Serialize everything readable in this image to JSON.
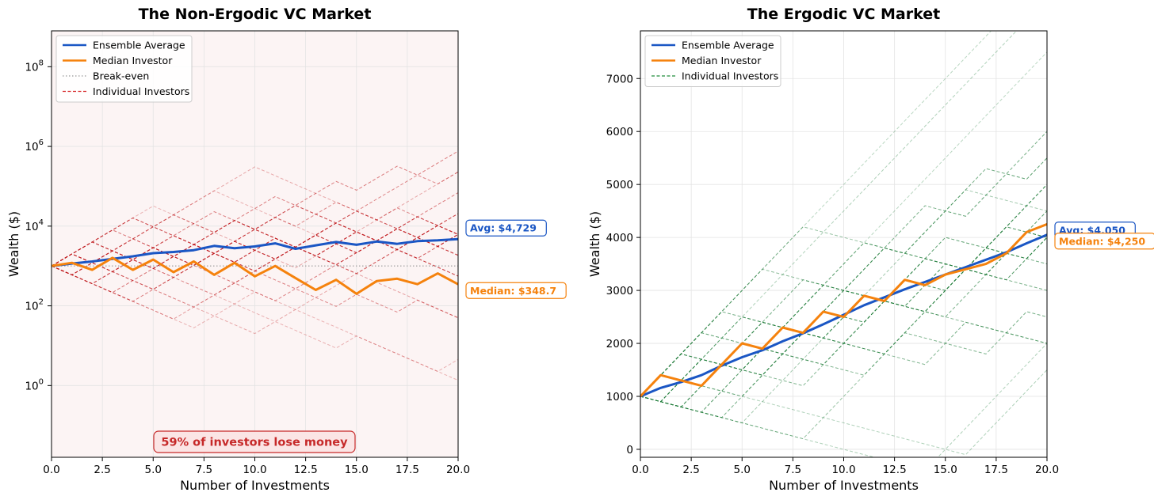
{
  "chart_data": [
    {
      "type": "line",
      "title": "The Non-Ergodic VC Market",
      "xlabel": "Number of Investments",
      "ylabel": "Wealth ($)",
      "yscale": "log",
      "xlim": [
        0,
        20
      ],
      "ylim_log10": [
        -1.8,
        8.9
      ],
      "xticks": [
        "0.0",
        "2.5",
        "5.0",
        "7.5",
        "10.0",
        "12.5",
        "15.0",
        "17.5",
        "20.0"
      ],
      "yticks": [
        {
          "base": "10",
          "exp": "0",
          "value": 1
        },
        {
          "base": "10",
          "exp": "2",
          "value": 100
        },
        {
          "base": "10",
          "exp": "4",
          "value": 10000
        },
        {
          "base": "10",
          "exp": "6",
          "value": 1000000
        },
        {
          "base": "10",
          "exp": "8",
          "value": 100000000
        }
      ],
      "grid": true,
      "legend_position": "top-left",
      "background": "#fcf4f4",
      "legend": [
        {
          "label": "Ensemble Average",
          "color": "#1a56c4",
          "style": "solid"
        },
        {
          "label": "Median Investor",
          "color": "#f5820d",
          "style": "solid"
        },
        {
          "label": "Break-even",
          "color": "#a9a9a9",
          "style": "dotted"
        },
        {
          "label": "Individual Investors",
          "color": "#d62728",
          "style": "dashed"
        }
      ],
      "individual_color": "#c0171b",
      "individual_multipliers": [
        2,
        0.6
      ],
      "individual_paths": [
        {
          "ups": "11111011000001000000",
          "opacity": 0.3
        },
        {
          "ups": "11010101100000000000",
          "opacity": 0.4
        },
        {
          "ups": "10111100000011111111",
          "opacity": 0.35
        },
        {
          "ups": "11110000111100001111",
          "opacity": 0.55
        },
        {
          "ups": "00000011111111000000",
          "opacity": 0.4
        },
        {
          "ups": "01010101010101010101",
          "opacity": 0.75
        },
        {
          "ups": "10101010101010101010",
          "opacity": 0.75
        },
        {
          "ups": "00110011001100110011",
          "opacity": 0.7
        },
        {
          "ups": "11001100110011001100",
          "opacity": 0.7
        },
        {
          "ups": "11100011100011100011",
          "opacity": 0.6
        },
        {
          "ups": "00011100011100011100",
          "opacity": 0.6
        },
        {
          "ups": "10011001100110011001",
          "opacity": 0.7
        },
        {
          "ups": "01100110011001100110",
          "opacity": 0.7
        },
        {
          "ups": "11011011011011011011",
          "opacity": 0.55
        },
        {
          "ups": "00100100100100100100",
          "opacity": 0.5
        },
        {
          "ups": "10000001000000100000",
          "opacity": 0.3
        },
        {
          "ups": "00001111000011110000",
          "opacity": 0.55
        },
        {
          "ups": "11110100101100101001",
          "opacity": 0.5
        },
        {
          "ups": "01101011101011011101",
          "opacity": 0.5
        },
        {
          "ups": "00000001110000000001",
          "opacity": 0.3
        },
        {
          "ups": "01111111110000000000",
          "opacity": 0.35
        },
        {
          "ups": "10000000001111111100",
          "opacity": 0.35
        }
      ],
      "series": [
        {
          "name": "Break-even",
          "x": [
            0,
            20
          ],
          "y": [
            1000,
            1000
          ]
        },
        {
          "name": "Ensemble Average",
          "x": [
            0,
            1,
            2,
            3,
            4,
            5,
            6,
            7,
            8,
            9,
            10,
            11,
            12,
            13,
            14,
            15,
            16,
            17,
            18,
            19,
            20
          ],
          "y": [
            1000,
            1150,
            1300,
            1500,
            1750,
            2100,
            2250,
            2500,
            3200,
            2800,
            3100,
            3700,
            2700,
            3300,
            4000,
            3400,
            4100,
            3600,
            4200,
            4400,
            4729
          ]
        },
        {
          "name": "Median Investor",
          "x": [
            0,
            1,
            2,
            3,
            4,
            5,
            6,
            7,
            8,
            9,
            10,
            11,
            12,
            13,
            14,
            15,
            16,
            17,
            18,
            19,
            20
          ],
          "y": [
            1000,
            1200,
            800,
            1600,
            800,
            1450,
            700,
            1300,
            600,
            1200,
            550,
            1000,
            500,
            250,
            450,
            200,
            420,
            480,
            350,
            650,
            348.7
          ]
        }
      ],
      "callouts": [
        {
          "text": "Avg: $4,729",
          "y": 4729,
          "color": "#1a56c4"
        },
        {
          "text": "Median: $348.7",
          "y": 348.7,
          "color": "#f5820d"
        }
      ],
      "annotation": "59% of investors lose money"
    },
    {
      "type": "line",
      "title": "The Ergodic VC Market",
      "xlabel": "Number of Investments",
      "ylabel": "Wealth ($)",
      "yscale": "linear",
      "xlim": [
        0,
        20
      ],
      "ylim": [
        -150,
        7900
      ],
      "xticks": [
        "0.0",
        "2.5",
        "5.0",
        "7.5",
        "10.0",
        "12.5",
        "15.0",
        "17.5",
        "20.0"
      ],
      "yticks": [
        0,
        1000,
        2000,
        3000,
        4000,
        5000,
        6000,
        7000
      ],
      "grid": true,
      "legend_position": "top-left",
      "background": "#ffffff",
      "legend": [
        {
          "label": "Ensemble Average",
          "color": "#1a56c4",
          "style": "solid"
        },
        {
          "label": "Median Investor",
          "color": "#f5820d",
          "style": "solid"
        },
        {
          "label": "Individual Investors",
          "color": "#1e8c3a",
          "style": "dashed"
        }
      ],
      "individual_color": "#1b7a36",
      "individual_steps": [
        400,
        -100
      ],
      "individual_paths": [
        {
          "ups": "00011111111111111111",
          "opacity": 0.3
        },
        {
          "ups": "00000000000000111111",
          "opacity": 0.35
        },
        {
          "ups": "11111100000000000000",
          "opacity": 0.5
        },
        {
          "ups": "00000111111111110000",
          "opacity": 0.4
        },
        {
          "ups": "11111111111111111111",
          "opacity": 0.3
        },
        {
          "ups": "01010101010101010101",
          "opacity": 0.85
        },
        {
          "ups": "10101010101010101010",
          "opacity": 0.85
        },
        {
          "ups": "11001100110011001100",
          "opacity": 0.75
        },
        {
          "ups": "00110011001100110011",
          "opacity": 0.75
        },
        {
          "ups": "11100011100011100011",
          "opacity": 0.7
        },
        {
          "ups": "00011100011100011100",
          "opacity": 0.6
        },
        {
          "ups": "10010010010010010010",
          "opacity": 0.6
        },
        {
          "ups": "11011011011011011011",
          "opacity": 0.6
        },
        {
          "ups": "01101101101101101101",
          "opacity": 0.7
        },
        {
          "ups": "00100100100100100100",
          "opacity": 0.55
        },
        {
          "ups": "11110000111100001111",
          "opacity": 0.6
        },
        {
          "ups": "00001111000011110000",
          "opacity": 0.6
        },
        {
          "ups": "10000000000000001111",
          "opacity": 0.35
        },
        {
          "ups": "11111111000000001111",
          "opacity": 0.45
        },
        {
          "ups": "00000000111111111111",
          "opacity": 0.45
        },
        {
          "ups": "01111111111111111110",
          "opacity": 0.35
        }
      ],
      "series": [
        {
          "name": "Ensemble Average",
          "x": [
            0,
            1,
            2,
            3,
            4,
            5,
            6,
            7,
            8,
            9,
            10,
            11,
            12,
            13,
            14,
            15,
            16,
            17,
            18,
            19,
            20
          ],
          "y": [
            1000,
            1160,
            1270,
            1400,
            1580,
            1740,
            1870,
            2040,
            2190,
            2360,
            2540,
            2720,
            2870,
            3020,
            3160,
            3300,
            3440,
            3580,
            3720,
            3890,
            4050
          ]
        },
        {
          "name": "Median Investor",
          "x": [
            0,
            1,
            2,
            3,
            4,
            5,
            6,
            7,
            8,
            9,
            10,
            11,
            12,
            13,
            14,
            15,
            16,
            17,
            18,
            19,
            20
          ],
          "y": [
            1000,
            1400,
            1300,
            1200,
            1600,
            2000,
            1900,
            2300,
            2200,
            2600,
            2500,
            2900,
            2800,
            3200,
            3100,
            3300,
            3400,
            3500,
            3700,
            4100,
            4250
          ]
        }
      ],
      "callouts": [
        {
          "text": "Avg: $4,050",
          "y": 4050,
          "color": "#1a56c4"
        },
        {
          "text": "Median: $4,250",
          "y": 4250,
          "color": "#f5820d"
        }
      ]
    }
  ]
}
